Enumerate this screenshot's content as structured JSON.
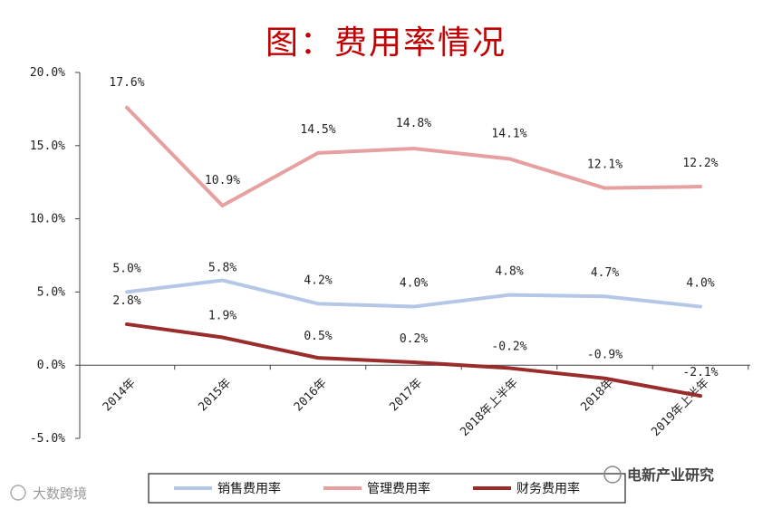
{
  "chart_data": {
    "type": "line",
    "title": "图：费用率情况",
    "categories": [
      "2014年",
      "2015年",
      "2016年",
      "2017年",
      "2018年上半年",
      "2018年",
      "2019年上半年"
    ],
    "ylim": [
      -5.0,
      20.0
    ],
    "yticks": [
      "20.0%",
      "15.0%",
      "10.0%",
      "5.0%",
      "0.0%",
      "-5.0%"
    ],
    "ytick_values": [
      20,
      15,
      10,
      5,
      0,
      -5
    ],
    "series": [
      {
        "name": "销售费用率",
        "color": "#b4c7e7",
        "values": [
          5.0,
          5.8,
          4.2,
          4.0,
          4.8,
          4.7,
          4.0
        ],
        "labels": [
          "5.0%",
          "5.8%",
          "4.2%",
          "4.0%",
          "4.8%",
          "4.7%",
          "4.0%"
        ]
      },
      {
        "name": "管理费用率",
        "color": "#e6a0a0",
        "values": [
          17.6,
          10.9,
          14.5,
          14.8,
          14.1,
          12.1,
          12.2
        ],
        "labels": [
          "17.6%",
          "10.9%",
          "14.5%",
          "14.8%",
          "14.1%",
          "12.1%",
          "12.2%"
        ]
      },
      {
        "name": "财务费用率",
        "color": "#9b2c2c",
        "values": [
          2.8,
          1.9,
          0.5,
          0.2,
          -0.2,
          -0.9,
          -2.1
        ],
        "labels": [
          "2.8%",
          "1.9%",
          "0.5%",
          "0.2%",
          "-0.2%",
          "-0.9%",
          "-2.1%"
        ]
      }
    ],
    "legend_position": "bottom",
    "grid": false
  },
  "watermarks": {
    "left": "大数跨境",
    "right": "电新产业研究"
  }
}
